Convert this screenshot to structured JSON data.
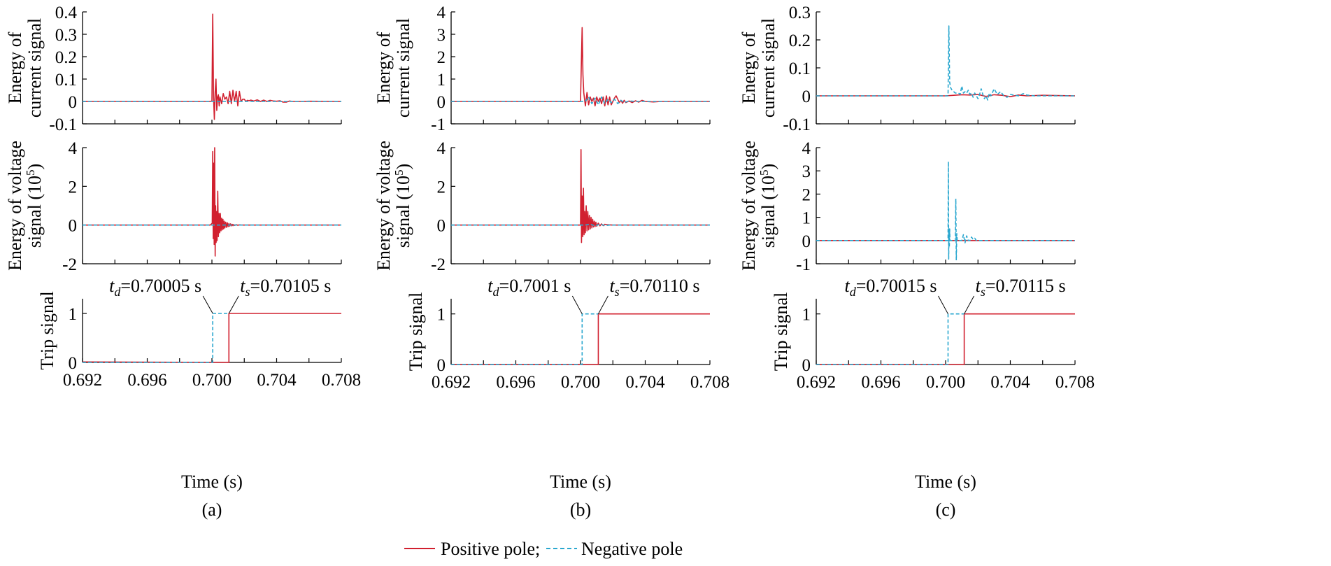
{
  "colors": {
    "positive": "#d1202f",
    "negative": "#2aa7cf",
    "axis": "#000000"
  },
  "legend": {
    "positive_label": "Positive pole;",
    "negative_label": "Negative pole"
  },
  "panels": [
    {
      "caption": "(a)",
      "xlabel": "Time (s)"
    },
    {
      "caption": "(b)",
      "xlabel": "Time (s)"
    },
    {
      "caption": "(c)",
      "xlabel": "Time (s)"
    }
  ],
  "chart_data": [
    {
      "type": "line",
      "panel": "(a)",
      "ylabel": [
        "Energy of",
        "current signal"
      ],
      "xlim": [
        0.692,
        0.708
      ],
      "ylim": [
        -0.1,
        0.4
      ],
      "yticks": [
        "-0.1",
        "0",
        "0.1",
        "0.2",
        "0.3",
        "0.4"
      ],
      "xticks": [],
      "grid": false,
      "series": [
        {
          "name": "Positive pole",
          "style": "solid",
          "x": [
            0.692,
            0.6999,
            0.7,
            0.70005,
            0.7001,
            0.70015,
            0.7002,
            0.70025,
            0.7003,
            0.70035,
            0.7004,
            0.70045,
            0.7005,
            0.7006,
            0.7007,
            0.7008,
            0.7009,
            0.701,
            0.7011,
            0.7012,
            0.7013,
            0.7014,
            0.7015,
            0.7016,
            0.7017,
            0.7018,
            0.7019,
            0.702,
            0.7021,
            0.7022,
            0.7023,
            0.7024,
            0.7025,
            0.7026,
            0.7028,
            0.703,
            0.7032,
            0.7034,
            0.7036,
            0.7038,
            0.704,
            0.7042,
            0.7044,
            0.7046,
            0.7048,
            0.705,
            0.7055,
            0.706,
            0.708
          ],
          "y": [
            0,
            0,
            0.002,
            0.39,
            0.02,
            -0.08,
            0.04,
            0.1,
            -0.04,
            0.02,
            0.03,
            -0.02,
            0.02,
            -0.01,
            0.035,
            0.01,
            0.02,
            -0.01,
            0.045,
            -0.01,
            0.05,
            0.0,
            0.045,
            -0.02,
            0.045,
            0.0,
            0.01,
            0.01,
            0.0,
            0.005,
            0.003,
            0.006,
            0.004,
            0.002,
            0.007,
            0.0,
            0.006,
            0.0,
            0.005,
            0.002,
            0.001,
            0.003,
            -0.003,
            -0.003,
            0.002,
            0.0,
            0.0,
            0.001,
            0.0
          ]
        },
        {
          "name": "Negative pole",
          "style": "dashed",
          "x": [
            0.692,
            0.708
          ],
          "y": [
            0,
            0
          ]
        }
      ]
    },
    {
      "type": "line",
      "panel": "(a)",
      "ylabel": [
        "Energy of voltage",
        "signal (10^5)"
      ],
      "xlim": [
        0.692,
        0.708
      ],
      "ylim": [
        -2,
        4
      ],
      "yticks": [
        "-2",
        "0",
        "2",
        "4"
      ],
      "xticks": [],
      "grid": false,
      "series": [
        {
          "name": "Positive pole",
          "style": "solid",
          "x": [
            0.692,
            0.6999,
            0.70002,
            0.70005,
            0.70008,
            0.70011,
            0.70014,
            0.70017,
            0.7002,
            0.70023,
            0.70026,
            0.70029,
            0.70032,
            0.70036,
            0.7004,
            0.70044,
            0.70048,
            0.70052,
            0.70056,
            0.7006,
            0.70064,
            0.70068,
            0.70072,
            0.70076,
            0.7008,
            0.70085,
            0.7009,
            0.70095,
            0.701,
            0.70105,
            0.7011,
            0.70115,
            0.7012,
            0.70125,
            0.7013,
            0.70135,
            0.7014,
            0.7015,
            0.7016,
            0.7017,
            0.7018,
            0.702,
            0.708
          ],
          "y": [
            0,
            0,
            0.1,
            3.8,
            -0.7,
            3.2,
            -1.0,
            4.0,
            -1.6,
            1.0,
            -0.9,
            0.7,
            -0.8,
            1.75,
            -0.6,
            0.6,
            -0.4,
            0.6,
            -0.3,
            0.35,
            -0.25,
            0.3,
            -0.2,
            0.2,
            -0.15,
            0.15,
            -0.12,
            0.12,
            -0.08,
            0.08,
            -0.06,
            0.06,
            -0.04,
            0.04,
            -0.03,
            0.03,
            -0.02,
            0.02,
            -0.01,
            0.01,
            0.005,
            0,
            0
          ]
        },
        {
          "name": "Negative pole",
          "style": "dashed",
          "x": [
            0.692,
            0.708
          ],
          "y": [
            0,
            0
          ]
        }
      ]
    },
    {
      "type": "line",
      "panel": "(a)",
      "ylabel": [
        "Trip signal"
      ],
      "xlim": [
        0.692,
        0.708
      ],
      "ylim": [
        0,
        1.3
      ],
      "yticks": [
        "0",
        "1"
      ],
      "xticks": [
        "0.692",
        "0.696",
        "0.700",
        "0.704",
        "0.708"
      ],
      "grid": false,
      "annotations": {
        "td_label": "=0.70005 s",
        "ts_label": "=0.70105 s",
        "td": 0.70005,
        "ts": 0.70105
      },
      "series": [
        {
          "name": "Positive pole",
          "style": "solid",
          "x": [
            0.692,
            0.70105,
            0.70105,
            0.708
          ],
          "y": [
            0.01,
            0,
            1,
            1
          ]
        },
        {
          "name": "Negative pole",
          "style": "dashed",
          "x": [
            0.692,
            0.70005,
            0.70005,
            0.70105
          ],
          "y": [
            0,
            0,
            1,
            1
          ]
        }
      ]
    },
    {
      "type": "line",
      "panel": "(b)",
      "ylabel": [
        "Energy of",
        "current signal"
      ],
      "xlim": [
        0.692,
        0.708
      ],
      "ylim": [
        -1,
        4
      ],
      "yticks": [
        "-1",
        "0",
        "1",
        "2",
        "3",
        "4"
      ],
      "xticks": [],
      "grid": false,
      "series": [
        {
          "name": "Positive pole",
          "style": "solid",
          "x": [
            0.692,
            0.7,
            0.7001,
            0.70015,
            0.7002,
            0.70025,
            0.7003,
            0.7004,
            0.7005,
            0.7006,
            0.7007,
            0.7008,
            0.7009,
            0.701,
            0.7011,
            0.7012,
            0.7013,
            0.7014,
            0.7015,
            0.7016,
            0.7017,
            0.7018,
            0.7019,
            0.702,
            0.7021,
            0.7022,
            0.7023,
            0.7024,
            0.7025,
            0.7026,
            0.7027,
            0.7028,
            0.703,
            0.7032,
            0.7034,
            0.7036,
            0.7038,
            0.704,
            0.7045,
            0.705,
            0.708
          ],
          "y": [
            0,
            0,
            3.3,
            1.2,
            0.4,
            0.1,
            -0.2,
            0.4,
            -0.15,
            0.2,
            0.0,
            0.15,
            -0.2,
            0.2,
            0.0,
            0.15,
            -0.1,
            0.2,
            -0.2,
            0.25,
            -0.15,
            0.2,
            -0.15,
            0.0,
            0.15,
            0.25,
            0.1,
            -0.05,
            0.05,
            -0.08,
            0.05,
            -0.05,
            0.02,
            -0.05,
            0.03,
            -0.03,
            0.05,
            0.0,
            -0.02,
            0.0,
            0.0
          ]
        },
        {
          "name": "Negative pole",
          "style": "dashed",
          "x": [
            0.692,
            0.7003,
            0.7005,
            0.7007,
            0.7009,
            0.7011,
            0.7013,
            0.7015,
            0.7017,
            0.7019,
            0.7021,
            0.7023,
            0.7025,
            0.7027,
            0.703,
            0.7035,
            0.708
          ],
          "y": [
            0,
            0,
            0.2,
            -0.1,
            0.15,
            -0.15,
            0.2,
            -0.1,
            0.1,
            -0.05,
            0.1,
            -0.1,
            0.05,
            -0.05,
            0.02,
            0,
            0
          ]
        }
      ]
    },
    {
      "type": "line",
      "panel": "(b)",
      "ylabel": [
        "Energy of voltage",
        "signal (10^5)"
      ],
      "xlim": [
        0.692,
        0.708
      ],
      "ylim": [
        -2,
        4
      ],
      "yticks": [
        "-2",
        "0",
        "2",
        "4"
      ],
      "xticks": [],
      "grid": false,
      "series": [
        {
          "name": "Positive pole",
          "style": "solid",
          "x": [
            0.692,
            0.7,
            0.70003,
            0.70006,
            0.7001,
            0.70014,
            0.70018,
            0.70022,
            0.70026,
            0.7003,
            0.70035,
            0.7004,
            0.70045,
            0.7005,
            0.70055,
            0.7006,
            0.70065,
            0.7007,
            0.70075,
            0.7008,
            0.70085,
            0.7009,
            0.70095,
            0.701,
            0.7011,
            0.7012,
            0.7013,
            0.7014,
            0.7015,
            0.7016,
            0.7018,
            0.702,
            0.708
          ],
          "y": [
            0,
            0,
            3.9,
            -0.9,
            1.5,
            -0.6,
            1.9,
            -0.5,
            0.7,
            -0.4,
            1.0,
            -0.3,
            0.7,
            -0.25,
            0.5,
            -0.2,
            0.4,
            -0.15,
            0.3,
            -0.1,
            0.2,
            -0.08,
            0.15,
            -0.06,
            0.1,
            -0.04,
            0.06,
            -0.03,
            0.04,
            0.02,
            0.01,
            0,
            0
          ]
        },
        {
          "name": "Negative pole",
          "style": "dashed",
          "x": [
            0.692,
            0.7003,
            0.7006,
            0.7009,
            0.7012,
            0.7015,
            0.7018,
            0.708
          ],
          "y": [
            0,
            0,
            0.05,
            -0.05,
            0.05,
            -0.03,
            0,
            0
          ]
        }
      ]
    },
    {
      "type": "line",
      "panel": "(b)",
      "ylabel": [
        "Trip signal"
      ],
      "xlim": [
        0.692,
        0.708
      ],
      "ylim": [
        0,
        1.3
      ],
      "yticks": [
        "0",
        "1"
      ],
      "xticks": [
        "0.692",
        "0.696",
        "0.700",
        "0.704",
        "0.708"
      ],
      "grid": false,
      "annotations": {
        "td_label": "=0.7001 s",
        "ts_label": "=0.70110 s",
        "td": 0.7001,
        "ts": 0.7011
      },
      "series": [
        {
          "name": "Positive pole",
          "style": "solid",
          "x": [
            0.692,
            0.7011,
            0.7011,
            0.708
          ],
          "y": [
            0,
            0,
            1,
            1
          ]
        },
        {
          "name": "Negative pole",
          "style": "dashed",
          "x": [
            0.692,
            0.7001,
            0.7001,
            0.7011
          ],
          "y": [
            0,
            0,
            1,
            1
          ]
        }
      ]
    },
    {
      "type": "line",
      "panel": "(c)",
      "ylabel": [
        "Energy of",
        "current signal"
      ],
      "xlim": [
        0.692,
        0.708
      ],
      "ylim": [
        -0.1,
        0.3
      ],
      "yticks": [
        "-0.1",
        "0",
        "0.1",
        "0.2",
        "0.3"
      ],
      "xticks": [],
      "grid": false,
      "series": [
        {
          "name": "Positive pole",
          "style": "solid",
          "x": [
            0.692,
            0.7,
            0.7005,
            0.701,
            0.7015,
            0.702,
            0.7025,
            0.703,
            0.7035,
            0.704,
            0.7045,
            0.705,
            0.706,
            0.708
          ],
          "y": [
            0,
            0,
            0.002,
            0.004,
            0.003,
            0.005,
            -0.002,
            0.004,
            0.002,
            -0.003,
            0.003,
            0.0,
            0.002,
            0.0
          ]
        },
        {
          "name": "Negative pole",
          "style": "dashed",
          "x": [
            0.692,
            0.7,
            0.70015,
            0.7002,
            0.70025,
            0.7003,
            0.7004,
            0.7005,
            0.7006,
            0.7007,
            0.7008,
            0.7009,
            0.701,
            0.7011,
            0.7012,
            0.7013,
            0.7014,
            0.7015,
            0.7016,
            0.7017,
            0.7018,
            0.7019,
            0.702,
            0.7021,
            0.7022,
            0.7023,
            0.7024,
            0.7025,
            0.7026,
            0.7027,
            0.7028,
            0.703,
            0.7032,
            0.7034,
            0.7036,
            0.7038,
            0.704,
            0.7045,
            0.7048,
            0.705,
            0.7055,
            0.708
          ],
          "y": [
            0,
            0,
            0.0,
            0.25,
            0.05,
            0.03,
            0.02,
            0.015,
            0.01,
            0.01,
            0.01,
            0.005,
            0.035,
            0.01,
            0.015,
            0.01,
            0.02,
            0.005,
            0.01,
            -0.005,
            0.01,
            0.0,
            -0.01,
            0.005,
            0.025,
            0.005,
            -0.01,
            0.0,
            -0.015,
            0.01,
            0.0,
            0.025,
            0.005,
            0.015,
            0.0,
            -0.005,
            0.005,
            0.0,
            0.008,
            0.003,
            0.0,
            0.0
          ]
        }
      ]
    },
    {
      "type": "line",
      "panel": "(c)",
      "ylabel": [
        "Energy of voltage",
        "signal (10^5)"
      ],
      "xlim": [
        0.692,
        0.708
      ],
      "ylim": [
        -1,
        4
      ],
      "yticks": [
        "-1",
        "0",
        "1",
        "2",
        "3",
        "4"
      ],
      "xticks": [],
      "grid": false,
      "series": [
        {
          "name": "Positive pole",
          "style": "solid",
          "x": [
            0.692,
            0.708
          ],
          "y": [
            0,
            0
          ]
        },
        {
          "name": "Negative pole",
          "style": "dashed",
          "x": [
            0.692,
            0.7,
            0.70015,
            0.70017,
            0.70019,
            0.70021,
            0.70023,
            0.70025,
            0.70027,
            0.70035,
            0.70045,
            0.70055,
            0.7006,
            0.70063,
            0.70066,
            0.70069,
            0.70072,
            0.7008,
            0.7009,
            0.701,
            0.7011,
            0.7012,
            0.7013,
            0.7014,
            0.7015,
            0.7016,
            0.7017,
            0.7018,
            0.7019,
            0.702,
            0.708
          ],
          "y": [
            0,
            0,
            0.0,
            3.4,
            -0.8,
            0.5,
            -0.3,
            0.5,
            0.0,
            0.0,
            0.0,
            0.0,
            0.0,
            1.8,
            -0.85,
            0.3,
            0.0,
            0.0,
            0.0,
            0.0,
            0.25,
            -0.1,
            0.2,
            0.0,
            0.0,
            0.15,
            0.05,
            0.1,
            0.0,
            0.0,
            0.0
          ]
        }
      ]
    },
    {
      "type": "line",
      "panel": "(c)",
      "ylabel": [
        "Trip signal"
      ],
      "xlim": [
        0.692,
        0.708
      ],
      "ylim": [
        0,
        1.3
      ],
      "yticks": [
        "0",
        "1"
      ],
      "xticks": [
        "0.692",
        "0.696",
        "0.700",
        "0.704",
        "0.708"
      ],
      "grid": false,
      "annotations": {
        "td_label": "=0.70015 s",
        "ts_label": "=0.70115 s",
        "td": 0.70015,
        "ts": 0.70115
      },
      "series": [
        {
          "name": "Positive pole",
          "style": "solid",
          "x": [
            0.692,
            0.70115,
            0.70115,
            0.708
          ],
          "y": [
            0,
            0,
            1,
            1
          ]
        },
        {
          "name": "Negative pole",
          "style": "dashed",
          "x": [
            0.692,
            0.70015,
            0.70015,
            0.70115
          ],
          "y": [
            0,
            0,
            1,
            1
          ]
        }
      ]
    }
  ]
}
